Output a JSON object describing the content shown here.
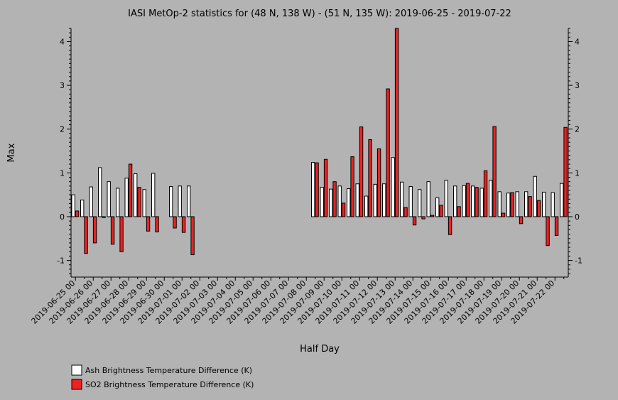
{
  "chart_data": {
    "type": "bar",
    "title": "IASI MetOp-2 statistics for (48 N, 138 W) - (51 N, 135 W): 2019-06-25 - 2019-07-22",
    "xlabel": "Half Day",
    "ylabel": "Max",
    "ylim": [
      -1.38,
      4.3
    ],
    "yticks": [
      -1,
      0,
      1,
      2,
      3,
      4
    ],
    "grid": false,
    "legend_position": "bottom-left",
    "categories": [
      "2019-06-25 00",
      "2019-06-25 12",
      "2019-06-26 00",
      "2019-06-26 12",
      "2019-06-27 00",
      "2019-06-27 12",
      "2019-06-28 00",
      "2019-06-28 12",
      "2019-06-29 00",
      "2019-06-29 12",
      "2019-06-30 00",
      "2019-06-30 12",
      "2019-07-01 00",
      "2019-07-01 12",
      "2019-07-02 00",
      "2019-07-02 12",
      "2019-07-03 00",
      "2019-07-03 12",
      "2019-07-04 00",
      "2019-07-04 12",
      "2019-07-05 00",
      "2019-07-05 12",
      "2019-07-06 00",
      "2019-07-06 12",
      "2019-07-07 00",
      "2019-07-07 12",
      "2019-07-08 00",
      "2019-07-08 12",
      "2019-07-09 00",
      "2019-07-09 12",
      "2019-07-10 00",
      "2019-07-10 12",
      "2019-07-11 00",
      "2019-07-11 12",
      "2019-07-12 00",
      "2019-07-12 12",
      "2019-07-13 00",
      "2019-07-13 12",
      "2019-07-14 00",
      "2019-07-14 12",
      "2019-07-15 00",
      "2019-07-15 12",
      "2019-07-16 00",
      "2019-07-16 12",
      "2019-07-17 00",
      "2019-07-17 12",
      "2019-07-18 00",
      "2019-07-18 12",
      "2019-07-19 00",
      "2019-07-19 12",
      "2019-07-20 00",
      "2019-07-20 12",
      "2019-07-21 00",
      "2019-07-21 12",
      "2019-07-22 00",
      "2019-07-22 12"
    ],
    "xtick_labels": [
      "2019-06-25 00",
      "2019-06-26 00",
      "2019-06-27 00",
      "2019-06-28 00",
      "2019-06-29 00",
      "2019-06-30 00",
      "2019-07-01 00",
      "2019-07-02 00",
      "2019-07-03 00",
      "2019-07-04 00",
      "2019-07-05 00",
      "2019-07-06 00",
      "2019-07-07 00",
      "2019-07-08 00",
      "2019-07-09 00",
      "2019-07-10 00",
      "2019-07-11 00",
      "2019-07-12 00",
      "2019-07-13 00",
      "2019-07-14 00",
      "2019-07-15 00",
      "2019-07-16 00",
      "2019-07-17 00",
      "2019-07-18 00",
      "2019-07-19 00",
      "2019-07-20 00",
      "2019-07-21 00",
      "2019-07-22 00"
    ],
    "series": [
      {
        "name": "Ash Brightness Temperature Difference (K)",
        "color": "#ffffff",
        "values": [
          0.5,
          0.38,
          0.68,
          1.12,
          0.8,
          0.65,
          0.88,
          0.98,
          0.62,
          0.99,
          null,
          0.69,
          0.7,
          0.7,
          null,
          null,
          null,
          null,
          null,
          null,
          null,
          null,
          null,
          null,
          null,
          null,
          null,
          1.24,
          0.67,
          0.63,
          0.7,
          0.64,
          0.75,
          0.47,
          0.74,
          0.75,
          1.35,
          0.79,
          0.69,
          0.62,
          0.8,
          0.43,
          0.83,
          0.7,
          0.71,
          0.7,
          0.65,
          0.83,
          0.57,
          0.54,
          0.57,
          0.57,
          0.92,
          0.56,
          0.55,
          0.76
        ]
      },
      {
        "name": "SO2 Brightness Temperature Difference (K)",
        "color": "#ee2222",
        "values": [
          0.13,
          -0.84,
          -0.6,
          -0.02,
          -0.63,
          -0.8,
          1.2,
          0.67,
          -0.33,
          -0.35,
          null,
          -0.26,
          -0.36,
          -0.87,
          null,
          null,
          null,
          null,
          null,
          null,
          null,
          null,
          null,
          null,
          null,
          null,
          null,
          1.23,
          1.31,
          0.8,
          0.31,
          1.37,
          2.05,
          1.76,
          1.55,
          2.92,
          4.3,
          0.21,
          -0.19,
          -0.05,
          0.03,
          0.26,
          -0.41,
          0.23,
          0.76,
          0.67,
          1.05,
          2.06,
          0.08,
          0.55,
          -0.16,
          0.46,
          0.37,
          -0.66,
          -0.43,
          2.04
        ]
      }
    ]
  }
}
